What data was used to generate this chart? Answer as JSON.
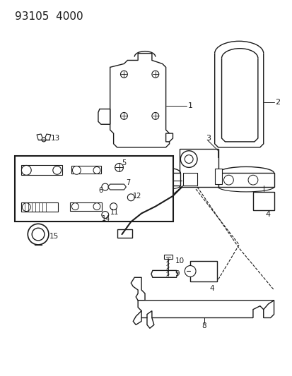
{
  "title": "93105  4000",
  "bg_color": "#ffffff",
  "line_color": "#1a1a1a",
  "title_fontsize": 11,
  "fig_width": 4.14,
  "fig_height": 5.33,
  "dpi": 100
}
